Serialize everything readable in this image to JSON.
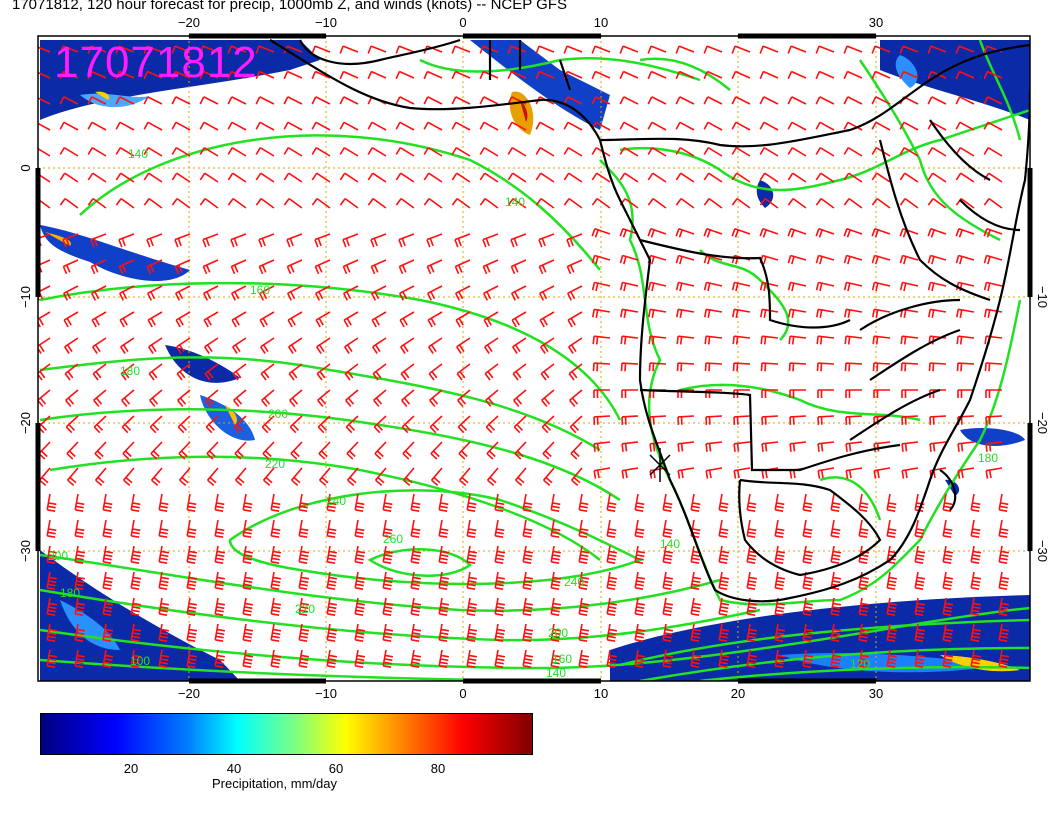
{
  "title": "17071812, 120 hour forecast for precip, 1000mb Z, and winds (knots) -- NCEP GFS",
  "stamp": "17071812",
  "map": {
    "lon_ticks": [
      "−20",
      "−10",
      "0",
      "10",
      "20",
      "30"
    ],
    "lat_ticks": [
      "0",
      "−10",
      "−20",
      "−30"
    ],
    "contour_labels": [
      "140",
      "140",
      "160",
      "180",
      "200",
      "220",
      "240",
      "260",
      "240",
      "220",
      "200",
      "180",
      "160",
      "140",
      "200",
      "180",
      "100",
      "140",
      "120"
    ],
    "colors": {
      "contour": "#22e022",
      "barb": "#ff1010",
      "coast": "#000000",
      "grid": "#d6a800"
    }
  },
  "colorbar": {
    "ticks": [
      "20",
      "40",
      "60",
      "80"
    ],
    "label": "Precipitation, mm/day"
  }
}
